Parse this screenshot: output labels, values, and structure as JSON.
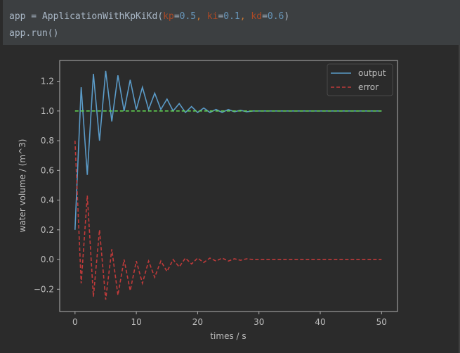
{
  "code": {
    "line1": {
      "var": "app",
      "op": " = ",
      "func": "ApplicationWithKpKiKd",
      "open": "(",
      "kp_name": "kp",
      "kp_val": "0.5",
      "ki_name": "ki",
      "ki_val": "0.1",
      "kd_name": "kd",
      "kd_val": "0.6",
      "close": ")"
    },
    "line2": "app.run()"
  },
  "chart_data": {
    "type": "line",
    "xlabel": "times / s",
    "ylabel": "water volume / (m^3)",
    "xlim": [
      -2.5,
      52.6
    ],
    "ylim": [
      -0.35,
      1.34
    ],
    "xticks": [
      0,
      10,
      20,
      30,
      40,
      50
    ],
    "yticks": [
      -0.2,
      0.0,
      0.2,
      0.4,
      0.6,
      0.8,
      1.0,
      1.2
    ],
    "xtick_labels": [
      "0",
      "10",
      "20",
      "30",
      "40",
      "50"
    ],
    "ytick_labels": [
      "−0.2",
      "0.0",
      "0.2",
      "0.4",
      "0.6",
      "0.8",
      "1.0",
      "1.2"
    ],
    "legend_placement": "top-right",
    "grid": false,
    "x": [
      0,
      1,
      2,
      3,
      4,
      5,
      6,
      7,
      8,
      9,
      10,
      11,
      12,
      13,
      14,
      15,
      16,
      17,
      18,
      19,
      20,
      21,
      22,
      23,
      24,
      25,
      26,
      27,
      28,
      29,
      30,
      31,
      32,
      33,
      34,
      35,
      36,
      37,
      38,
      39,
      40,
      41,
      42,
      43,
      44,
      45,
      46,
      47,
      48,
      49,
      50
    ],
    "series": [
      {
        "name": "output",
        "color": "#5b9bc8",
        "style": "solid",
        "values": [
          0.2,
          1.16,
          0.57,
          1.25,
          0.8,
          1.27,
          0.93,
          1.24,
          1.0,
          1.21,
          1.01,
          1.16,
          1.01,
          1.12,
          1.01,
          1.08,
          1.0,
          1.05,
          0.99,
          1.03,
          0.99,
          1.02,
          0.99,
          1.01,
          0.99,
          1.01,
          0.995,
          1.005,
          0.995,
          1.0,
          1.0,
          1.0,
          1.0,
          1.0,
          1.0,
          1.0,
          1.0,
          1.0,
          1.0,
          1.0,
          1.0,
          1.0,
          1.0,
          1.0,
          1.0,
          1.0,
          1.0,
          1.0,
          1.0,
          1.0,
          1.0
        ]
      },
      {
        "name": "error",
        "color": "#c03a3a",
        "style": "dashed",
        "values": [
          0.8,
          -0.16,
          0.43,
          -0.25,
          0.2,
          -0.27,
          0.07,
          -0.24,
          0.0,
          -0.21,
          -0.01,
          -0.16,
          -0.01,
          -0.12,
          -0.01,
          -0.08,
          0.0,
          -0.05,
          0.01,
          -0.03,
          0.01,
          -0.02,
          0.01,
          -0.01,
          0.01,
          -0.01,
          0.005,
          -0.005,
          0.005,
          0.0,
          0.0,
          0.0,
          0.0,
          0.0,
          0.0,
          0.0,
          0.0,
          0.0,
          0.0,
          0.0,
          0.0,
          0.0,
          0.0,
          0.0,
          0.0,
          0.0,
          0.0,
          0.0,
          0.0,
          0.0,
          0.0
        ]
      },
      {
        "color": "#5fcf4f",
        "style": "dashed",
        "x": [
          0,
          50
        ],
        "values": [
          1.0,
          1.0
        ]
      }
    ]
  }
}
